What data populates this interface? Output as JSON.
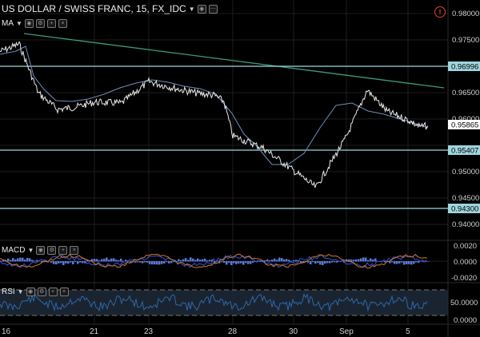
{
  "header": {
    "symbol_title": "US DOLLAR / SWISS FRANC, 15, FX_IDC",
    "alert_icon": "alert-circle-icon"
  },
  "indicators": {
    "ma_label": "MA",
    "macd_label": "MACD",
    "rsi_label": "RSI"
  },
  "price_scale": {
    "ticks": [
      "0.98000",
      "0.97500",
      "0.97000",
      "0.96500",
      "0.96000",
      "0.95500",
      "0.95000",
      "0.94500",
      "0.94000"
    ],
    "levels": [
      {
        "value": "0.96996",
        "color": "#9fd5dd"
      },
      {
        "value": "0.95407",
        "color": "#9fd5dd"
      },
      {
        "value": "0.94300",
        "color": "#9fd5dd"
      }
    ],
    "current_price": "0.95865"
  },
  "macd_scale": {
    "ticks": [
      "0.0020",
      "0.0000",
      "-0.0020"
    ]
  },
  "rsi_scale": {
    "ticks": [
      "50.0000",
      "0.0000"
    ]
  },
  "time_axis": {
    "labels": [
      "16",
      "21",
      "23",
      "28",
      "30",
      "Sep",
      "5"
    ]
  },
  "colors": {
    "price_line": "#e8e8e8",
    "ma_line": "#6d8fb8",
    "trend_line": "#3c9a80",
    "level_line": "#9fd5dd",
    "macd_line": "#3355d8",
    "signal_line": "#d2772e",
    "histogram": "#5a7ad8",
    "rsi_line": "#2f67a8"
  },
  "chart_data": {
    "type": "line",
    "x": [
      "16",
      "17",
      "18",
      "19",
      "20",
      "21",
      "22",
      "23",
      "24",
      "25",
      "26",
      "27",
      "28",
      "29",
      "30",
      "31",
      "Sep",
      "2",
      "3",
      "4",
      "5",
      "6"
    ],
    "series": [
      {
        "values": [
          0.9728,
          0.9742,
          0.9649,
          0.9618,
          0.9623,
          0.9632,
          0.963,
          0.9671,
          0.9658,
          0.9649,
          0.9645,
          0.9633,
          0.9568,
          0.9545,
          0.9502,
          0.947,
          0.9566,
          0.9655,
          0.9614,
          0.9598,
          0.9585,
          0.9587
        ]
      }
    ],
    "ylim": [
      0.94,
      0.9815
    ]
  }
}
